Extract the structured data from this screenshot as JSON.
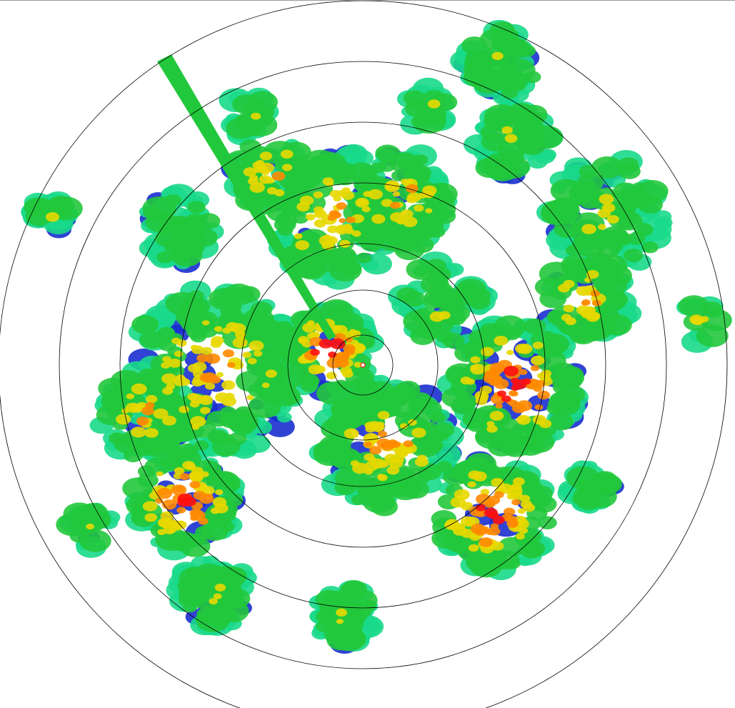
{
  "radar": {
    "palette": {
      "weak": "#1a2fd0",
      "light": "#22c83c",
      "light_alt": "#19d98a",
      "moderate": "#e8d800",
      "strong": "#ff8a00",
      "intense": "#ff1010"
    },
    "range_ring_count": 7,
    "ring_color": "#000000"
  }
}
